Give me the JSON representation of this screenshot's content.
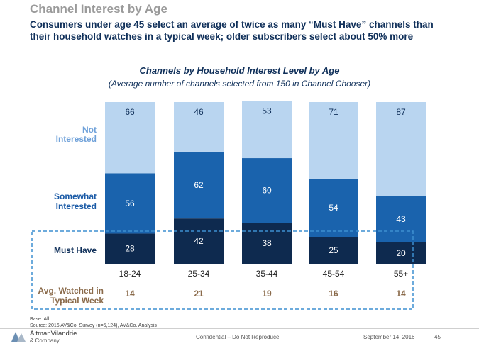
{
  "header": {
    "title": "Channel Interest by Age",
    "subtitle": "Consumers under age 45 select an average of twice as many “Must Have” channels than their household watches in a typical week; older subscribers select about 50% more"
  },
  "colors": {
    "must_have": "#0e2a4f",
    "somewhat": "#1a63ad",
    "not_interested": "#b9d5f0",
    "row_label_not": "#6fa1d9",
    "row_label_somewhat": "#1a5aa6",
    "row_label_must": "#10305a",
    "avg_label": "#8a6a4a",
    "highlight_box": "#3d8fd0"
  },
  "chart_data": {
    "type": "bar",
    "stacked": true,
    "title": "Channels by Household Interest Level by Age",
    "subtitle": "(Average number of channels selected from 150 in Channel Chooser)",
    "categories": [
      "18-24",
      "25-34",
      "35-44",
      "45-54",
      "55+"
    ],
    "series": [
      {
        "name": "Must Have",
        "values": [
          28,
          42,
          38,
          25,
          20
        ]
      },
      {
        "name": "Somewhat Interested",
        "values": [
          56,
          62,
          60,
          54,
          43
        ]
      },
      {
        "name": "Not Interested",
        "values": [
          66,
          46,
          53,
          71,
          87
        ]
      }
    ],
    "row_labels": [
      "Not\nInterested",
      "Somewhat\nInterested",
      "Must Have"
    ],
    "ylim": [
      0,
      150
    ],
    "avg_watched": {
      "label": "Avg. Watched in\nTypical Week",
      "values": [
        14,
        21,
        19,
        16,
        14
      ]
    }
  },
  "footer": {
    "base": "Base: All",
    "source": "Source: 2016 AV&Co. Survey (n=5,124), AV&Co. Analysis",
    "logo_name": "AltmanVilandrie",
    "logo_sub": "& Company",
    "confidential": "Confidential – Do Not Reproduce",
    "date": "September 14, 2016",
    "page": "45"
  }
}
